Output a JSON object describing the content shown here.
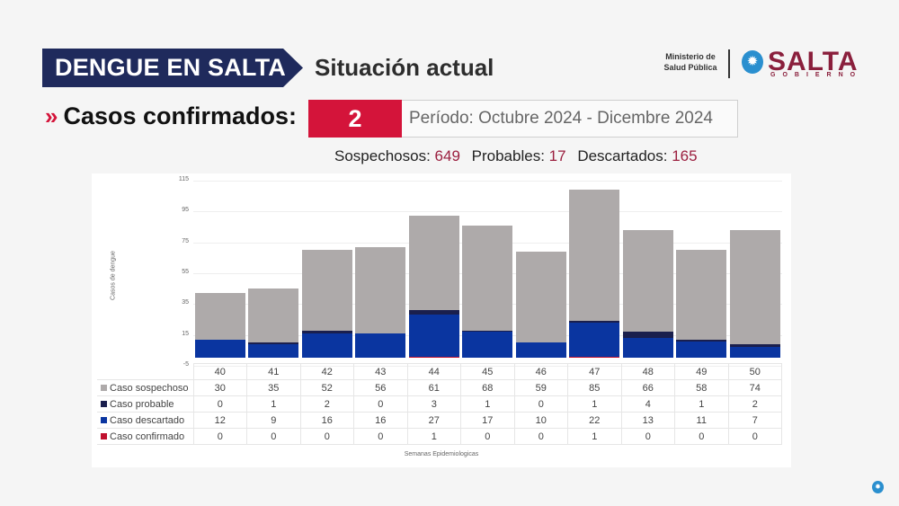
{
  "header": {
    "banner_title": "DENGUE EN SALTA",
    "subtitle": "Situación actual",
    "logo": {
      "ministry_line1": "Ministerio de",
      "ministry_line2": "Salud Pública",
      "emblem_icon": "sun-star-emblem-icon",
      "brand": "SALTA",
      "brand_sub": "GOBIERNO"
    }
  },
  "summary": {
    "chevron": "»",
    "confirmed_label": "Casos confirmados:",
    "confirmed_count": "2",
    "period": "Período: Octubre 2024 - Dicembre 2024",
    "stats": [
      {
        "label": "Sospechosos:",
        "value": "649"
      },
      {
        "label": "Probables:",
        "value": "17"
      },
      {
        "label": "Descartados:",
        "value": "165"
      }
    ]
  },
  "colors": {
    "banner": "#1f2a5c",
    "accent_red": "#d4143a",
    "stat_value": "#9b1f3f",
    "sospechoso": "#aeaaaa",
    "probable": "#1a1f4d",
    "descartado": "#0a35a0",
    "confirmado": "#c0102e"
  },
  "chart_data": {
    "type": "bar",
    "stacked": true,
    "title": "",
    "xlabel": "Semanas Epidemiologicas",
    "ylabel": "Casos de dengue",
    "ylim": [
      -5,
      115
    ],
    "yticks": [
      115,
      95,
      75,
      55,
      35,
      15,
      -5
    ],
    "grid": true,
    "legend_position": "table-left",
    "categories": [
      "40",
      "41",
      "42",
      "43",
      "44",
      "45",
      "46",
      "47",
      "48",
      "49",
      "50"
    ],
    "series": [
      {
        "name": "Caso sospechoso",
        "color": "#aeaaaa",
        "values": [
          30,
          35,
          52,
          56,
          61,
          68,
          59,
          85,
          66,
          58,
          74
        ]
      },
      {
        "name": "Caso probable",
        "color": "#1a1f4d",
        "values": [
          0,
          1,
          2,
          0,
          3,
          1,
          0,
          1,
          4,
          1,
          2
        ]
      },
      {
        "name": "Caso descartado",
        "color": "#0a35a0",
        "values": [
          12,
          9,
          16,
          16,
          27,
          17,
          10,
          22,
          13,
          11,
          7
        ]
      },
      {
        "name": "Caso confirmado",
        "color": "#c0102e",
        "values": [
          0,
          0,
          0,
          0,
          1,
          0,
          0,
          1,
          0,
          0,
          0
        ]
      }
    ]
  },
  "footer": {
    "corner_icon": "salta-emblem-icon"
  }
}
